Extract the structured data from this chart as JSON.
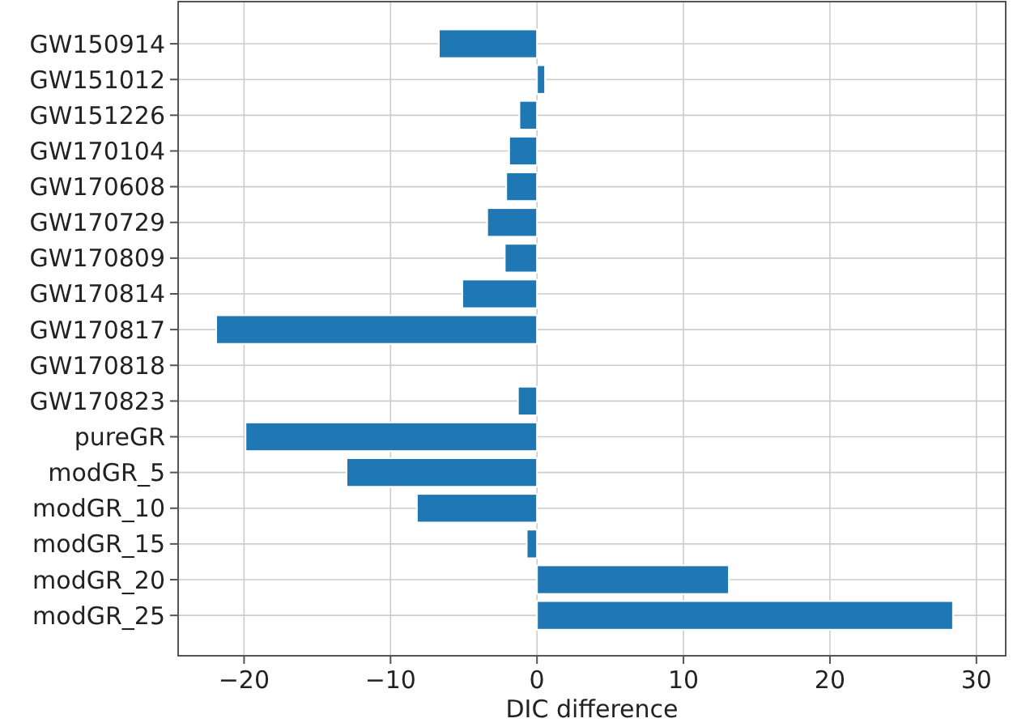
{
  "chart_data": {
    "type": "bar",
    "orientation": "horizontal",
    "xlabel": "DIC difference",
    "categories": [
      "GW150914",
      "GW151012",
      "GW151226",
      "GW170104",
      "GW170608",
      "GW170729",
      "GW170809",
      "GW170814",
      "GW170817",
      "GW170818",
      "GW170823",
      "pureGR",
      "modGR_5",
      "modGR_10",
      "modGR_15",
      "modGR_20",
      "modGR_25"
    ],
    "values": [
      -6.7,
      0.55,
      -1.2,
      -1.9,
      -2.1,
      -3.4,
      -2.2,
      -5.1,
      -21.9,
      0,
      -1.3,
      -19.9,
      -13.0,
      -8.2,
      -0.7,
      13.1,
      28.4
    ],
    "color": "#1f77b4",
    "xlim": [
      -24.5,
      32
    ],
    "xticks": [
      {
        "value": -20,
        "label": "−20"
      },
      {
        "value": -10,
        "label": "−10"
      },
      0,
      10,
      20,
      30
    ],
    "grid": true
  }
}
